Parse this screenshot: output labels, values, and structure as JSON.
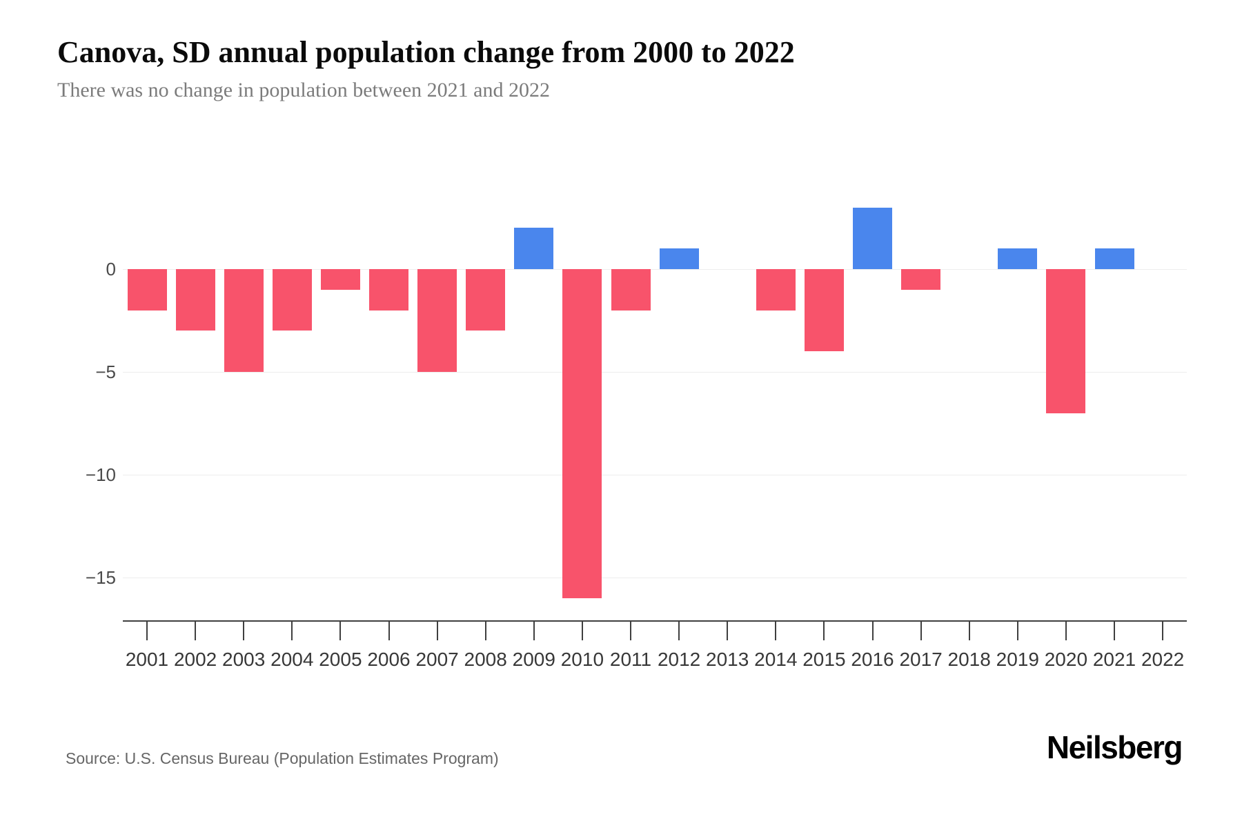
{
  "header": {
    "title": "Canova, SD annual population change from 2000 to 2022",
    "subtitle": "There was no change in population between 2021 and 2022"
  },
  "chart_data": {
    "type": "bar",
    "title": "Canova, SD annual population change from 2000 to 2022",
    "categories": [
      "2001",
      "2002",
      "2003",
      "2004",
      "2005",
      "2006",
      "2007",
      "2008",
      "2009",
      "2010",
      "2011",
      "2012",
      "2013",
      "2014",
      "2015",
      "2016",
      "2017",
      "2018",
      "2019",
      "2020",
      "2021",
      "2022"
    ],
    "values": [
      -2,
      -3,
      -5,
      -3,
      -1,
      -2,
      -5,
      -3,
      2,
      -16,
      -2,
      1,
      0,
      -2,
      -4,
      3,
      -1,
      0,
      1,
      -7,
      1,
      0
    ],
    "xlabel": "",
    "ylabel": "",
    "ylim": [
      -17,
      3.5
    ],
    "yticks": [
      0,
      -5,
      -10,
      -15
    ],
    "ytick_labels": [
      "0",
      "−5",
      "−10",
      "−15"
    ],
    "grid": "horizontal-light",
    "legend": "none",
    "colors": {
      "positive": "#4a86ed",
      "negative": "#f8536b"
    }
  },
  "footer": {
    "source": "Source: U.S. Census Bureau (Population Estimates Program)",
    "brand": "Neilsberg"
  }
}
